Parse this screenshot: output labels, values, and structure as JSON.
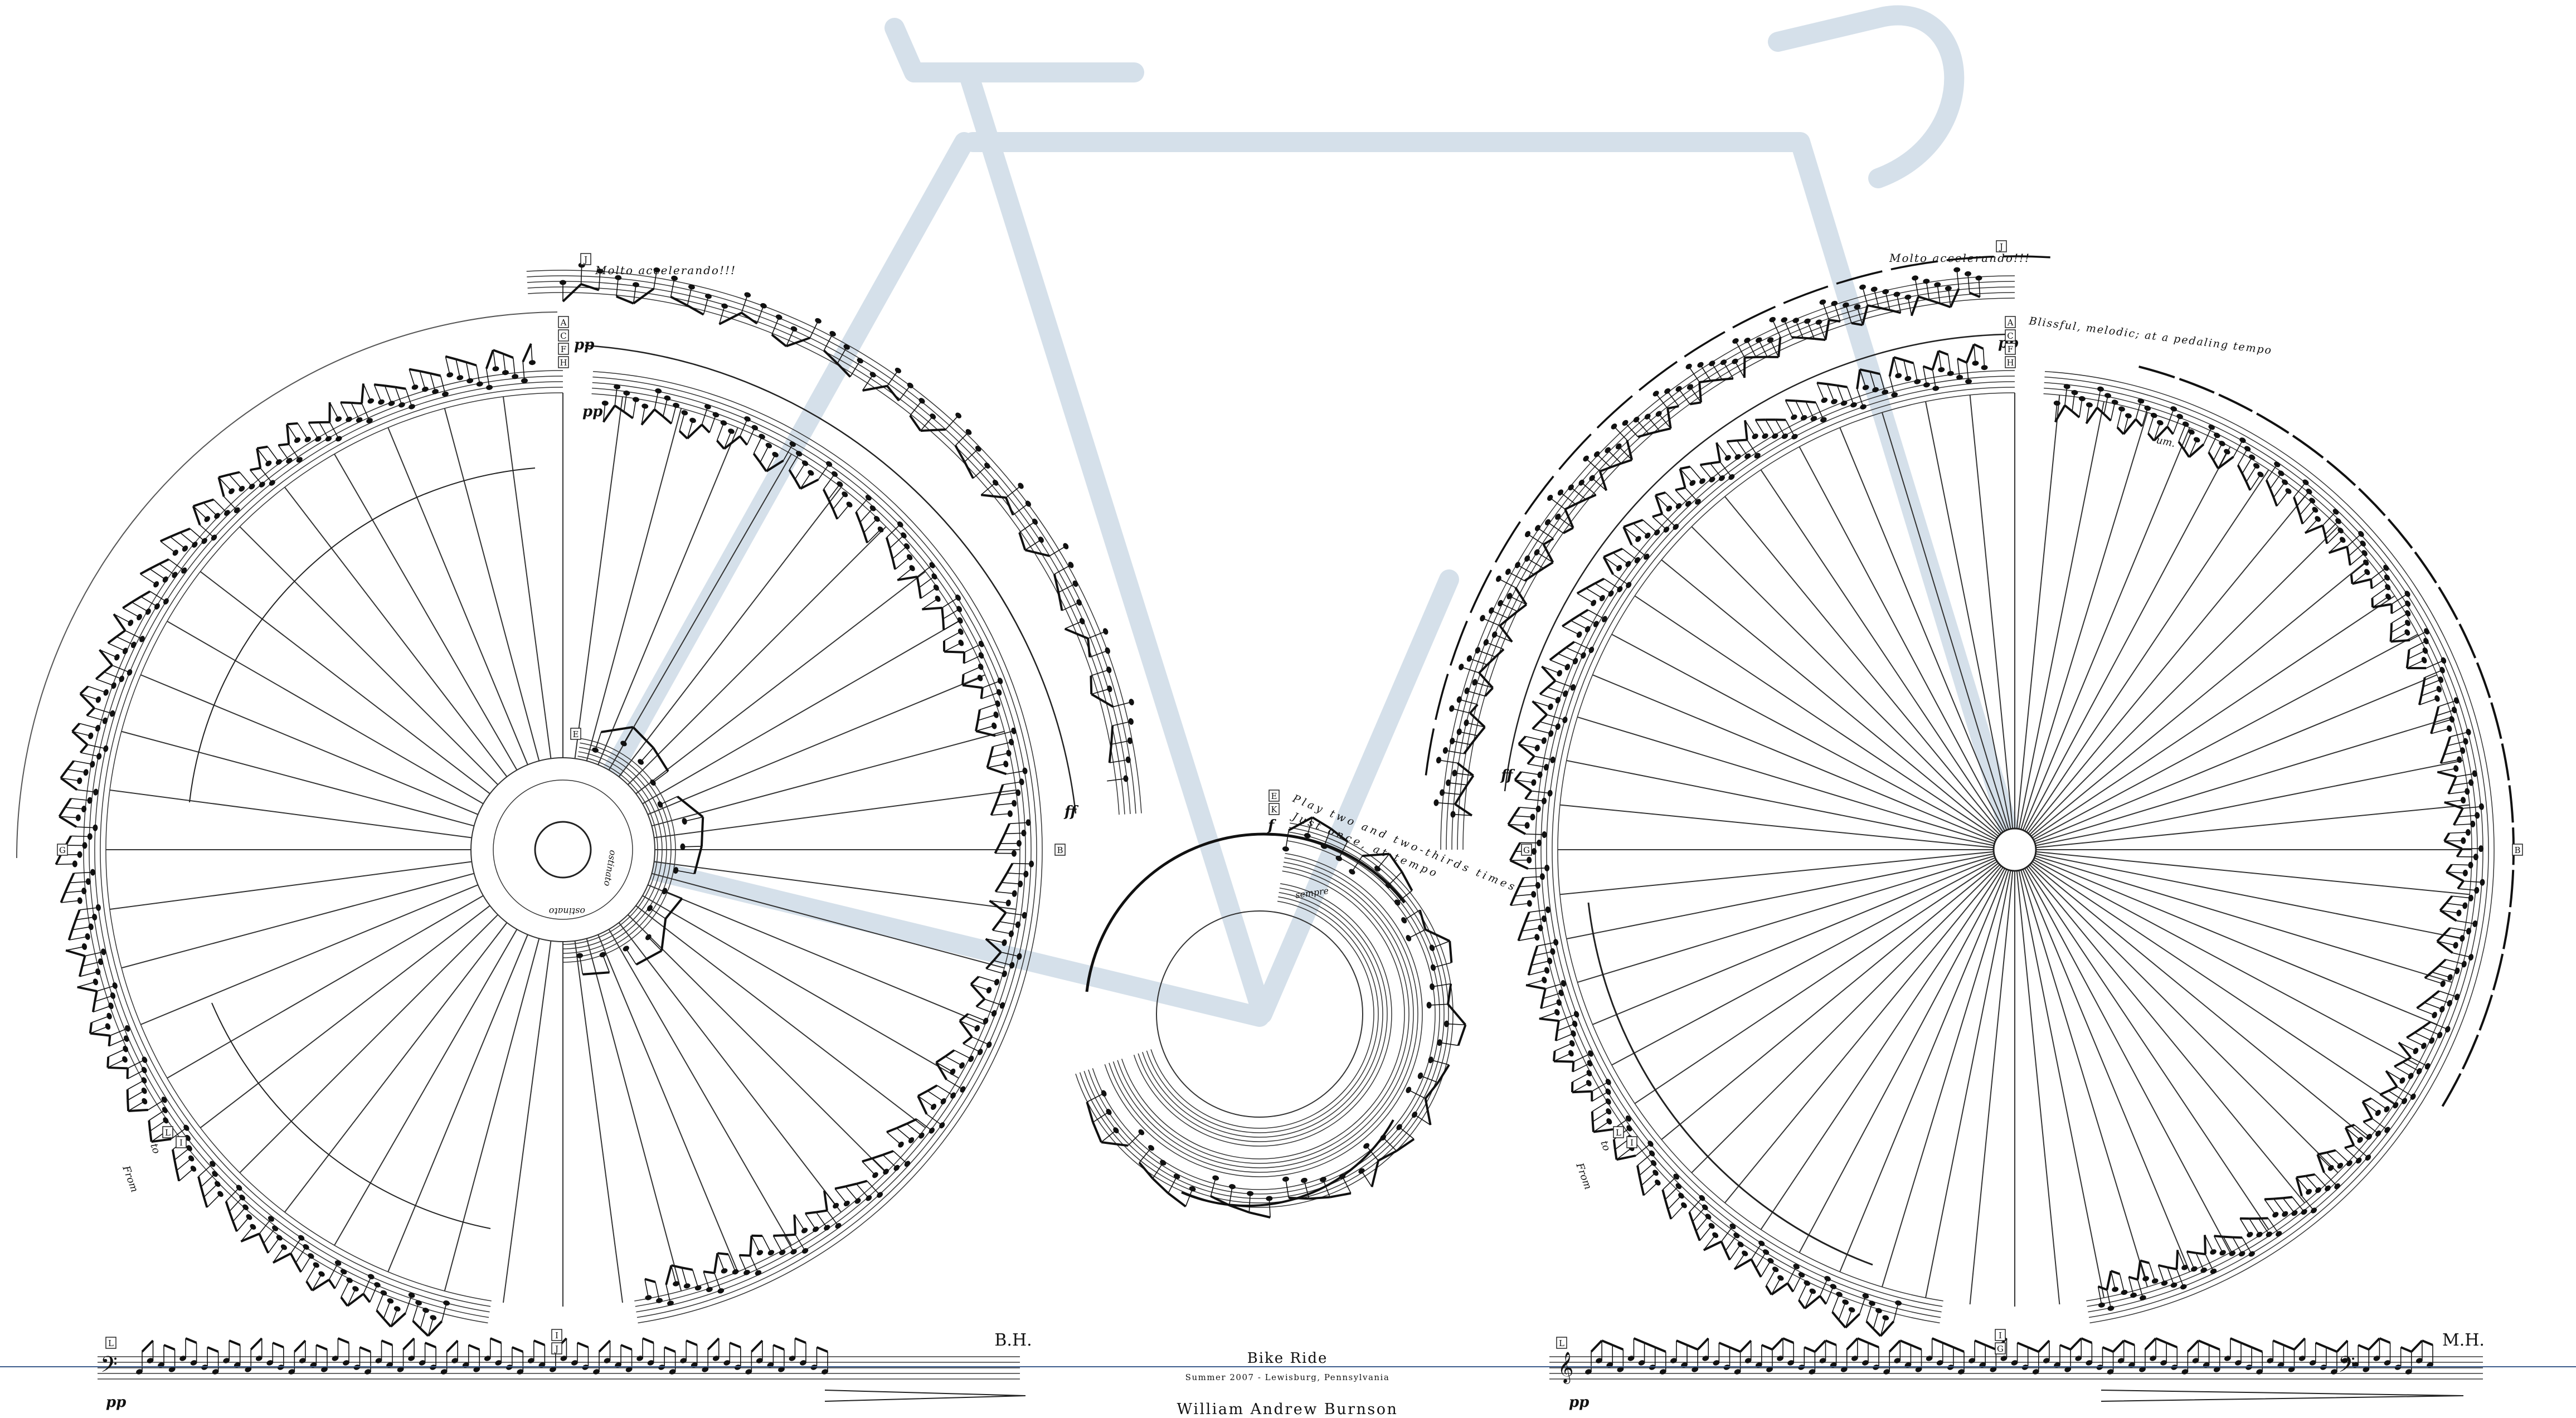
{
  "title": "Bike Ride",
  "subtitle": "Summer 2007 - Lewisburg, Pennsylvania",
  "composer": "William Andrew Burnson",
  "initials": {
    "left": "B.H.",
    "right": "M.H."
  },
  "tempo_marks": {
    "left_top": "Molto accelerando!!!",
    "right_top": "Molto accelerando!!!",
    "right_intro": "Blissful, melodic;  at a pedaling tempo",
    "center": "Play two and two-thirds times.",
    "center_2": "Just once, at tempo"
  },
  "rehearsal_letters": {
    "left_stack": [
      "A",
      "C",
      "F",
      "H"
    ],
    "right_stack": [
      "A",
      "C",
      "F",
      "H"
    ],
    "center_stack": [
      "E",
      "K"
    ],
    "left_wheel_left": "G",
    "left_wheel_right": "B",
    "right_wheel_left": "G",
    "right_wheel_right": "B",
    "left_hub": "E",
    "top_left": "J",
    "top_right": "J",
    "bottom_left": "L",
    "bottom_mid_left": [
      "I",
      "J"
    ],
    "bottom_right": "L",
    "bottom_mid_right": [
      "I",
      "G"
    ],
    "left_from": [
      "L",
      "I"
    ],
    "right_from": [
      "L",
      "I"
    ]
  },
  "dynamics": {
    "pp": "pp",
    "ff": "ff",
    "f": "f"
  },
  "directions": {
    "from_to": "From",
    "to": "to",
    "ostinato": "ostinato",
    "um": "um.",
    "sempre": "sempre"
  }
}
